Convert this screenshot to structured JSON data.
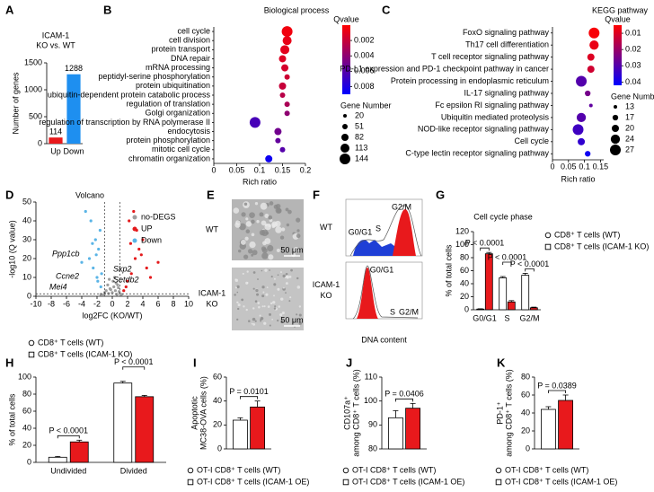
{
  "chart_data": [
    {
      "type": "bar",
      "panel": "A",
      "title": [
        "ICAM-1",
        "KO vs. WT"
      ],
      "ylabel": "Number of genes",
      "categories": [
        "Up",
        "Down"
      ],
      "values": [
        114,
        1288
      ],
      "colors": [
        "#e8191c",
        "#1e8ff0"
      ],
      "ylim": [
        0,
        1500
      ],
      "yticks": [
        0,
        500,
        1000,
        1500
      ]
    },
    {
      "type": "dot",
      "panel": "B",
      "title": "Biological process",
      "xlabel": "Rich ratio",
      "categories": [
        "cell cycle",
        "cell division",
        "protein transport",
        "DNA repair",
        "mRNA processing",
        "peptidyl-serine phosphorylation",
        "protein ubiquitination",
        "ubiquitin-dependent protein catabolic process",
        "regulation of translation",
        "Golgi organization",
        "regulation of transcription by RNA polymerase II",
        "endocytosis",
        "protein phosphorylation",
        "mitotic cell cycle",
        "chromatin organization"
      ],
      "values": [
        0.16,
        0.16,
        0.155,
        0.15,
        0.155,
        0.16,
        0.15,
        0.15,
        0.16,
        0.16,
        0.09,
        0.14,
        0.14,
        0.15,
        0.12
      ],
      "qvalues": [
        0.0005,
        0.0008,
        0.001,
        0.0012,
        0.0015,
        0.0018,
        0.002,
        0.0025,
        0.003,
        0.004,
        0.0065,
        0.005,
        0.0055,
        0.006,
        0.0085
      ],
      "sizes": [
        144,
        113,
        113,
        82,
        82,
        51,
        82,
        51,
        51,
        51,
        144,
        82,
        51,
        51,
        82
      ],
      "xlim": [
        0,
        0.2
      ],
      "xticks": [
        0,
        0.05,
        0.1,
        0.15,
        0.2
      ],
      "color_title": "Qvalue",
      "clim": [
        0,
        0.009
      ],
      "cticks": [
        0.002,
        0.004,
        0.006,
        0.008
      ],
      "colors": [
        "#ff0000",
        "#0000ff"
      ],
      "size_title": "Gene Number",
      "size_legend": [
        20,
        51,
        82,
        113,
        144
      ]
    },
    {
      "type": "dot",
      "panel": "C",
      "title": "KEGG pathway",
      "xlabel": "Rich ratio",
      "categories": [
        "FoxO signaling pathway",
        "Th17 cell differentiation",
        "T cell receptor signaling pathway",
        "PD-L1 expression and PD-1 checkpoint pathway in cancer",
        "Protein processing in endoplasmic reticulum",
        "IL-17 signaling pathway",
        "Fc epsilon RI signaling pathway",
        "Ubiquitin mediated proteolysis",
        "NOD-like receptor signaling pathway",
        "Cell cycle",
        "C-type lectin receptor signaling pathway"
      ],
      "values": [
        0.13,
        0.13,
        0.12,
        0.12,
        0.09,
        0.11,
        0.12,
        0.09,
        0.08,
        0.09,
        0.11
      ],
      "qvalues": [
        0.006,
        0.008,
        0.01,
        0.012,
        0.03,
        0.025,
        0.028,
        0.03,
        0.033,
        0.035,
        0.04
      ],
      "sizes": [
        27,
        24,
        20,
        20,
        27,
        17,
        13,
        24,
        27,
        20,
        17
      ],
      "xlim": [
        0,
        0.16
      ],
      "xticks": [
        0,
        0.05,
        0.1,
        0.15
      ],
      "color_title": "Qvalue",
      "clim": [
        0.005,
        0.042
      ],
      "cticks": [
        0.01,
        0.02,
        0.03,
        0.04
      ],
      "colors": [
        "#ff0000",
        "#0000ff"
      ],
      "size_title": "Gene Number",
      "size_legend": [
        13,
        17,
        20,
        24,
        27
      ]
    },
    {
      "type": "scatter",
      "panel": "D",
      "title": "Volcano",
      "xlabel": "log2FC (KO/WT)",
      "ylabel": "-log10 (Q value)",
      "xlim": [
        -10,
        10
      ],
      "xticks": [
        -10,
        -8,
        -6,
        -4,
        -2,
        0,
        2,
        4,
        6,
        8,
        10
      ],
      "ylim": [
        0,
        50
      ],
      "yticks": [
        0,
        10,
        20,
        30,
        40,
        50
      ],
      "vlines": [
        -1,
        1
      ],
      "hline": 1.3,
      "series": [
        {
          "name": "no-DEGS",
          "color": "#9e9e9e",
          "x": [
            -1.5,
            -1,
            -0.8,
            -0.5,
            -0.3,
            0,
            0.2,
            0.4,
            0.6,
            0.9,
            1.2,
            -0.6,
            0.1,
            0.5,
            -0.2,
            0.8,
            -1.1,
            0.3,
            -0.4,
            0.7
          ],
          "values": [
            1,
            2,
            3,
            1.5,
            4,
            2,
            5,
            3,
            1,
            2.5,
            1,
            6,
            8,
            7,
            3.5,
            4.5,
            0.8,
            10,
            9,
            6
          ]
        },
        {
          "name": "UP",
          "color": "#e41a1c",
          "x": [
            1.5,
            2,
            2.5,
            3,
            3.5,
            4,
            4.5,
            5,
            2.2,
            3.2,
            1.8,
            2.8,
            6,
            3.8,
            2.4
          ],
          "values": [
            3,
            8,
            12,
            20,
            25,
            30,
            15,
            10,
            40,
            35,
            5,
            45,
            18,
            22,
            28
          ]
        },
        {
          "name": "Down",
          "color": "#5ab4e6",
          "x": [
            -1.5,
            -2,
            -2.5,
            -3,
            -1.8,
            -2.2,
            -1.6,
            -2.8,
            -3.5,
            -1.4,
            -2.1,
            -1.9,
            -4,
            -2.6
          ],
          "values": [
            5,
            10,
            15,
            20,
            25,
            30,
            35,
            40,
            45,
            12,
            22,
            8,
            18,
            28
          ]
        }
      ],
      "annotations": [
        "Ppp1cb",
        "Ccne2",
        "Mei4",
        "Skp2",
        "Setdb2"
      ]
    },
    {
      "type": "micrograph",
      "panel": "E",
      "samples": [
        {
          "label": [
            "WT"
          ],
          "scale_bar": "50 μm"
        },
        {
          "label": [
            "ICAM-1",
            "KO"
          ],
          "scale_bar": "50 μm"
        }
      ]
    },
    {
      "type": "flow",
      "panel": "F",
      "xlabel": "DNA content",
      "samples": [
        {
          "label": [
            "WT"
          ],
          "gates": [
            "G0/G1",
            "S",
            "G2/M"
          ]
        },
        {
          "label": [
            "ICAM-1",
            "KO"
          ],
          "gates": [
            "G0/G1",
            "S",
            "G2/M"
          ]
        }
      ]
    },
    {
      "type": "grouped",
      "panel": "G",
      "title": "Cell cycle phase",
      "ylabel": "% of total cells",
      "categories": [
        "G0/G1",
        "S",
        "G2/M"
      ],
      "legend": "right",
      "ylim": [
        0,
        120
      ],
      "yticks": [
        0,
        20,
        40,
        60,
        80,
        100,
        120
      ],
      "series": [
        {
          "name": "CD8⁺ T cells (WT)",
          "color": "#ffffff",
          "marker": "circle",
          "values": [
            1,
            49,
            53
          ],
          "errors": [
            0.5,
            2,
            3
          ]
        },
        {
          "name": "CD8⁺ T cells (ICAM-1 KO)",
          "color": "#e8191c",
          "marker": "square",
          "values": [
            86,
            12,
            3
          ],
          "errors": [
            2,
            2,
            1
          ]
        }
      ],
      "annotations": [
        "P < 0.0001",
        "P < 0.0001",
        "P < 0.0001"
      ]
    },
    {
      "type": "grouped",
      "panel": "H",
      "ylabel": "% of total cells",
      "categories": [
        "Undivided",
        "Divided"
      ],
      "legend": "top",
      "ylim": [
        0,
        100
      ],
      "yticks": [
        0,
        20,
        40,
        60,
        80,
        100
      ],
      "series": [
        {
          "name": "CD8⁺ T cells (WT)",
          "color": "#ffffff",
          "marker": "circle",
          "values": [
            6,
            93
          ],
          "errors": [
            1,
            2
          ]
        },
        {
          "name": "CD8⁺ T cells (ICAM-1 KO)",
          "color": "#e8191c",
          "marker": "square",
          "values": [
            24,
            77
          ],
          "errors": [
            2,
            1.5
          ]
        }
      ],
      "annotations": [
        "P < 0.0001",
        "P < 0.0001"
      ]
    },
    {
      "type": "grouped",
      "panel": "I",
      "ylabel": [
        "Apoptotic",
        "MC38-OVA cells (%)"
      ],
      "categories": [
        null
      ],
      "legend": "bottom",
      "ylim": [
        0,
        60
      ],
      "yticks": [
        0,
        20,
        40,
        60
      ],
      "series": [
        {
          "name": "OT-I CD8⁺ T cells (WT)",
          "color": "#ffffff",
          "marker": "circle",
          "values": [
            24
          ],
          "errors": [
            2
          ]
        },
        {
          "name": "OT-I CD8⁺ T cells (ICAM-1 OE)",
          "color": "#e8191c",
          "marker": "square",
          "values": [
            35
          ],
          "errors": [
            5
          ]
        }
      ],
      "annotations": [
        "P = 0.0101"
      ]
    },
    {
      "type": "grouped",
      "panel": "J",
      "ylabel": [
        "CD107a⁺",
        "among CD8⁺ T cells (%)"
      ],
      "categories": [
        null
      ],
      "legend": "bottom",
      "ylim": [
        80,
        110
      ],
      "yticks": [
        80,
        90,
        100,
        110
      ],
      "series": [
        {
          "name": "OT-I CD8⁺ T cells (WT)",
          "color": "#ffffff",
          "marker": "circle",
          "values": [
            93
          ],
          "errors": [
            3
          ]
        },
        {
          "name": "OT-I CD8⁺ T cells (ICAM-1 OE)",
          "color": "#e8191c",
          "marker": "square",
          "values": [
            97
          ],
          "errors": [
            2
          ]
        }
      ],
      "annotations": [
        "P = 0.0406"
      ]
    },
    {
      "type": "grouped",
      "panel": "K",
      "ylabel": [
        "PD-1⁺",
        "among CD8⁺ T cells (%)"
      ],
      "categories": [
        null
      ],
      "legend": "bottom",
      "ylim": [
        0,
        80
      ],
      "yticks": [
        0,
        20,
        40,
        60,
        80
      ],
      "series": [
        {
          "name": "OT-I CD8⁺ T cells (WT)",
          "color": "#ffffff",
          "marker": "circle",
          "values": [
            44
          ],
          "errors": [
            3
          ]
        },
        {
          "name": "OT-I CD8⁺ T cells (ICAM-1 OE)",
          "color": "#e8191c",
          "marker": "square",
          "values": [
            54
          ],
          "errors": [
            6
          ]
        }
      ],
      "annotations": [
        "P = 0.0389"
      ]
    }
  ]
}
